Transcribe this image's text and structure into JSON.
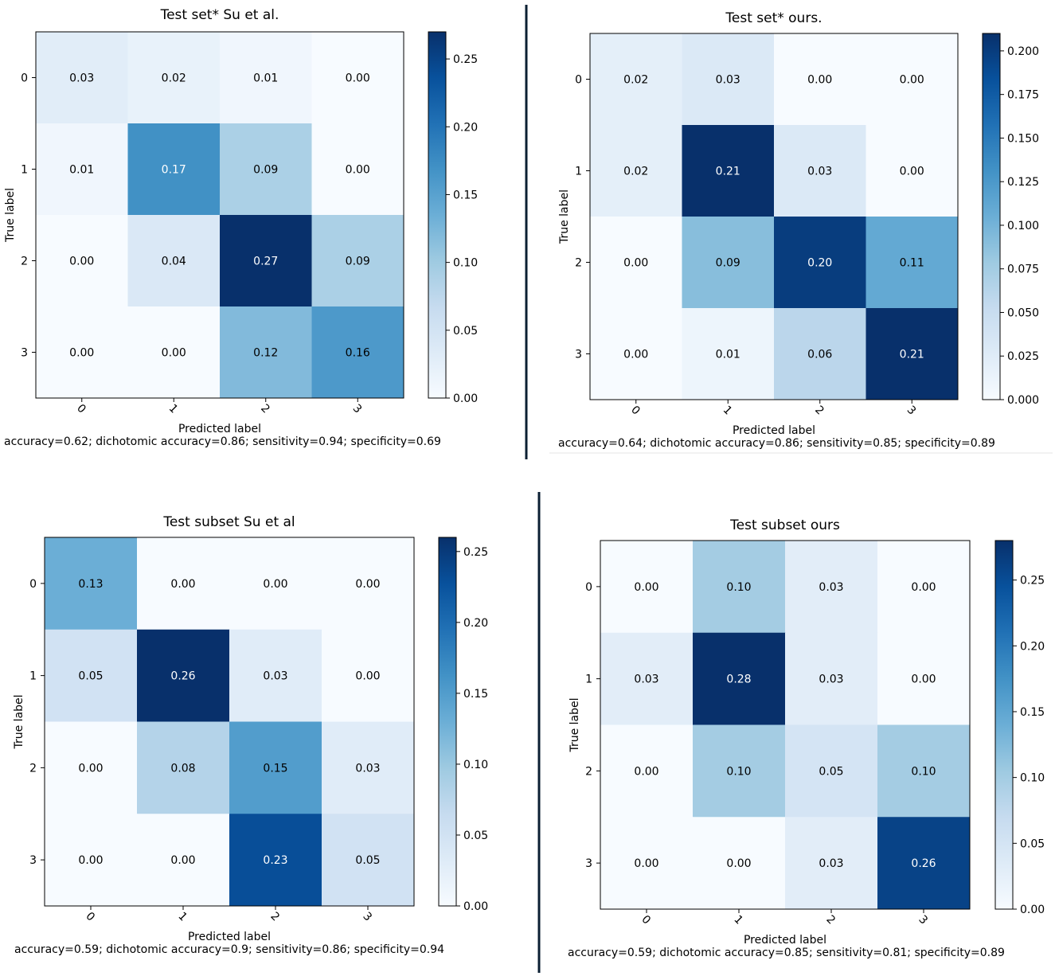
{
  "chart_data": [
    {
      "type": "heatmap",
      "title": "Test set* Su et al.",
      "xlabel": "Predicted label",
      "ylabel": "True label",
      "x_ticks": [
        "0",
        "1",
        "2",
        "3"
      ],
      "y_ticks": [
        "0",
        "1",
        "2",
        "3"
      ],
      "matrix": [
        [
          0.03,
          0.02,
          0.01,
          0.0
        ],
        [
          0.01,
          0.17,
          0.09,
          0.0
        ],
        [
          0.0,
          0.04,
          0.27,
          0.09
        ],
        [
          0.0,
          0.0,
          0.12,
          0.16
        ]
      ],
      "cell_labels": [
        [
          "0.03",
          "0.02",
          "0.01",
          "0.00"
        ],
        [
          "0.01",
          "0.17",
          "0.09",
          "0.00"
        ],
        [
          "0.00",
          "0.04",
          "0.27",
          "0.09"
        ],
        [
          "0.00",
          "0.00",
          "0.12",
          "0.16"
        ]
      ],
      "colorbar_range": [
        0,
        0.27
      ],
      "colorbar_ticks": [
        "0.00",
        "0.05",
        "0.10",
        "0.15",
        "0.20",
        "0.25"
      ],
      "colorbar_tick_values": [
        0,
        0.05,
        0.1,
        0.15,
        0.2,
        0.25
      ],
      "caption": "accuracy=0.62; dichotomic accuracy=0.86; sensitivity=0.94; specificity=0.69",
      "colormap": "Blues"
    },
    {
      "type": "heatmap",
      "title": "Test set* ours.",
      "xlabel": "Predicted label",
      "ylabel": "True label",
      "x_ticks": [
        "0",
        "1",
        "2",
        "3"
      ],
      "y_ticks": [
        "0",
        "1",
        "2",
        "3"
      ],
      "matrix": [
        [
          0.02,
          0.03,
          0.0,
          0.0
        ],
        [
          0.02,
          0.21,
          0.03,
          0.0
        ],
        [
          0.0,
          0.09,
          0.2,
          0.11
        ],
        [
          0.0,
          0.01,
          0.06,
          0.21
        ]
      ],
      "cell_labels": [
        [
          "0.02",
          "0.03",
          "0.00",
          "0.00"
        ],
        [
          "0.02",
          "0.21",
          "0.03",
          "0.00"
        ],
        [
          "0.00",
          "0.09",
          "0.20",
          "0.11"
        ],
        [
          "0.00",
          "0.01",
          "0.06",
          "0.21"
        ]
      ],
      "colorbar_range": [
        0,
        0.21
      ],
      "colorbar_ticks": [
        "0.000",
        "0.025",
        "0.050",
        "0.075",
        "0.100",
        "0.125",
        "0.150",
        "0.175",
        "0.200"
      ],
      "colorbar_tick_values": [
        0,
        0.025,
        0.05,
        0.075,
        0.1,
        0.125,
        0.15,
        0.175,
        0.2
      ],
      "caption": "accuracy=0.64; dichotomic accuracy=0.86; sensitivity=0.85; specificity=0.89",
      "colormap": "Blues"
    },
    {
      "type": "heatmap",
      "title": "Test subset Su et al",
      "xlabel": "Predicted label",
      "ylabel": "True label",
      "x_ticks": [
        "0",
        "1",
        "2",
        "3"
      ],
      "y_ticks": [
        "0",
        "1",
        "2",
        "3"
      ],
      "matrix": [
        [
          0.13,
          0.0,
          0.0,
          0.0
        ],
        [
          0.05,
          0.26,
          0.03,
          0.0
        ],
        [
          0.0,
          0.08,
          0.15,
          0.03
        ],
        [
          0.0,
          0.0,
          0.23,
          0.05
        ]
      ],
      "cell_labels": [
        [
          "0.13",
          "0.00",
          "0.00",
          "0.00"
        ],
        [
          "0.05",
          "0.26",
          "0.03",
          "0.00"
        ],
        [
          "0.00",
          "0.08",
          "0.15",
          "0.03"
        ],
        [
          "0.00",
          "0.00",
          "0.23",
          "0.05"
        ]
      ],
      "colorbar_range": [
        0,
        0.26
      ],
      "colorbar_ticks": [
        "0.00",
        "0.05",
        "0.10",
        "0.15",
        "0.20",
        "0.25"
      ],
      "colorbar_tick_values": [
        0,
        0.05,
        0.1,
        0.15,
        0.2,
        0.25
      ],
      "caption": "accuracy=0.59; dichotomic accuracy=0.9; sensitivity=0.86; specificity=0.94",
      "colormap": "Blues"
    },
    {
      "type": "heatmap",
      "title": "Test subset ours",
      "xlabel": "Predicted label",
      "ylabel": "True label",
      "x_ticks": [
        "0",
        "1",
        "2",
        "3"
      ],
      "y_ticks": [
        "0",
        "1",
        "2",
        "3"
      ],
      "matrix": [
        [
          0.0,
          0.1,
          0.03,
          0.0
        ],
        [
          0.03,
          0.28,
          0.03,
          0.0
        ],
        [
          0.0,
          0.1,
          0.05,
          0.1
        ],
        [
          0.0,
          0.0,
          0.03,
          0.26
        ]
      ],
      "cell_labels": [
        [
          "0.00",
          "0.10",
          "0.03",
          "0.00"
        ],
        [
          "0.03",
          "0.28",
          "0.03",
          "0.00"
        ],
        [
          "0.00",
          "0.10",
          "0.05",
          "0.10"
        ],
        [
          "0.00",
          "0.00",
          "0.03",
          "0.26"
        ]
      ],
      "colorbar_range": [
        0,
        0.28
      ],
      "colorbar_ticks": [
        "0.00",
        "0.05",
        "0.10",
        "0.15",
        "0.20",
        "0.25"
      ],
      "colorbar_tick_values": [
        0,
        0.05,
        0.1,
        0.15,
        0.2,
        0.25
      ],
      "caption": "accuracy=0.59; dichotomic accuracy=0.85; sensitivity=0.81; specificity=0.89",
      "colormap": "Blues"
    }
  ],
  "colors": {
    "background": "#ffffff",
    "axis": "#000000",
    "divider": "#0b1f33",
    "text_light": "#ffffff",
    "text_dark": "#000000"
  }
}
